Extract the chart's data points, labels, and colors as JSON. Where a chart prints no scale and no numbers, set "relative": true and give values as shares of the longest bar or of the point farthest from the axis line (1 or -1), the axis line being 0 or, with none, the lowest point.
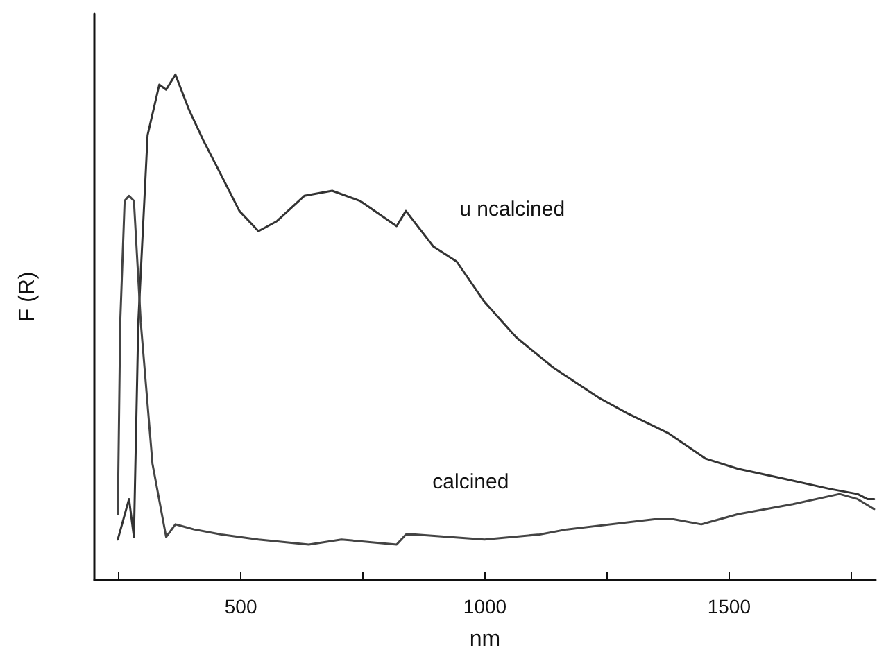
{
  "chart_data": {
    "type": "line",
    "xlabel": "nm",
    "ylabel": "F (R)",
    "relative": true,
    "xlim": [
      200,
      1800
    ],
    "xticks": [
      {
        "value": 250,
        "label": null
      },
      500,
      {
        "value": 750,
        "label": null
      },
      1000,
      {
        "value": 1250,
        "label": null
      },
      1500,
      {
        "value": 1750,
        "label": null
      }
    ],
    "grid": false,
    "legend": false,
    "marker": "none",
    "line_style": "solid",
    "series": [
      {
        "name": "u ncalcined",
        "color": "#333333",
        "x": [
          248,
          271,
          281,
          290,
          309,
          333,
          347,
          366,
          394,
          423,
          455,
          497,
          536,
          574,
          630,
          687,
          744,
          819,
          838,
          894,
          942,
          999,
          1064,
          1140,
          1234,
          1291,
          1376,
          1452,
          1518,
          1613,
          1707,
          1763,
          1783,
          1797
        ],
        "values": [
          0.08,
          0.16,
          0.085,
          0.51,
          0.88,
          0.98,
          0.97,
          1.0,
          0.93,
          0.87,
          0.81,
          0.73,
          0.69,
          0.71,
          0.76,
          0.77,
          0.75,
          0.7,
          0.73,
          0.66,
          0.63,
          0.55,
          0.48,
          0.42,
          0.36,
          0.33,
          0.29,
          0.24,
          0.22,
          0.2,
          0.18,
          0.17,
          0.16,
          0.16
        ]
      },
      {
        "name": "calcined",
        "color": "#444444",
        "x": [
          248,
          253,
          262,
          271,
          281,
          295,
          319,
          347,
          366,
          404,
          460,
          536,
          639,
          706,
          819,
          838,
          857,
          999,
          1112,
          1168,
          1347,
          1386,
          1443,
          1518,
          1631,
          1726,
          1763,
          1797
        ],
        "values": [
          0.13,
          0.51,
          0.75,
          0.76,
          0.75,
          0.51,
          0.23,
          0.085,
          0.11,
          0.1,
          0.09,
          0.08,
          0.07,
          0.08,
          0.07,
          0.09,
          0.09,
          0.08,
          0.09,
          0.1,
          0.12,
          0.12,
          0.11,
          0.13,
          0.15,
          0.17,
          0.16,
          0.14
        ]
      }
    ]
  }
}
